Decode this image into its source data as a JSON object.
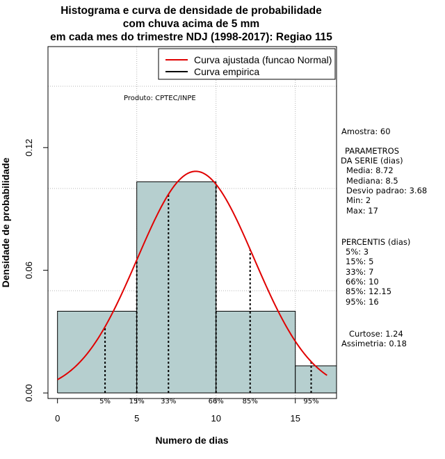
{
  "colors": {
    "bar_fill": "#b6cfcf",
    "normal_curve": "#e00000",
    "empirical": "#000000",
    "grid": "#b4b4b4"
  },
  "credit": "Produto: CPTEC/INPE",
  "legend": {
    "normal": "Curva ajustada (funcao Normal)",
    "empirical": "Curva empirica"
  },
  "stats": {
    "amostra": "Amostra: 60",
    "params_title_1": "PARAMETROS",
    "params_title_2": "DA SERIE (dias)",
    "media": "Media: 8.72",
    "mediana": "Mediana: 8.5",
    "desvio": "Desvio padrao: 3.68",
    "min": "Min: 2",
    "max": "Max: 17",
    "pct_title": "PERCENTIS (dias)",
    "p5": "5%: 3",
    "p15": "15%: 5",
    "p33": "33%: 7",
    "p66": "66%: 10",
    "p85": "85%: 12.15",
    "p95": "95%: 16",
    "curtose": "Curtose: 1.24",
    "assimetria": "Assimetria: 0.18"
  },
  "chart_data": {
    "type": "bar",
    "title": [
      "Histograma e curva de densidade de probabilidade",
      "com chuva acima de 5 mm",
      "em cada mes do trimestre NDJ (1998-2017): Regiao 115"
    ],
    "xlabel": "Numero de dias",
    "ylabel": "Densidade de probabilidade",
    "xlim": [
      -0.6,
      17.6
    ],
    "ylim": [
      -0.0027,
      0.1694
    ],
    "x_ticks": [
      0,
      5,
      10,
      15
    ],
    "y_ticks": [
      0.0,
      0.06,
      0.12
    ],
    "y_tick_labels": [
      "0.00",
      "0.06",
      "0.12"
    ],
    "grid_x": [
      5,
      10,
      15
    ],
    "grid_y": [
      0.05,
      0.1,
      0.15
    ],
    "grid": true,
    "legend_position": "top-right",
    "bins": [
      {
        "x0": 0,
        "x1": 5,
        "density": 0.04
      },
      {
        "x0": 5,
        "x1": 10,
        "density": 0.1033
      },
      {
        "x0": 10,
        "x1": 15,
        "density": 0.04
      },
      {
        "x0": 15,
        "x1": 20,
        "density": 0.0133
      }
    ],
    "normal_curve": {
      "mean": 8.72,
      "sd": 3.68,
      "x_from": 0,
      "x_to": 17
    },
    "percentile_lines": [
      {
        "label": "5%",
        "x": 3
      },
      {
        "label": "15%",
        "x": 5
      },
      {
        "label": "33%",
        "x": 7
      },
      {
        "label": "66%",
        "x": 10
      },
      {
        "label": "85%",
        "x": 12.15
      },
      {
        "label": "95%",
        "x": 16
      }
    ]
  }
}
